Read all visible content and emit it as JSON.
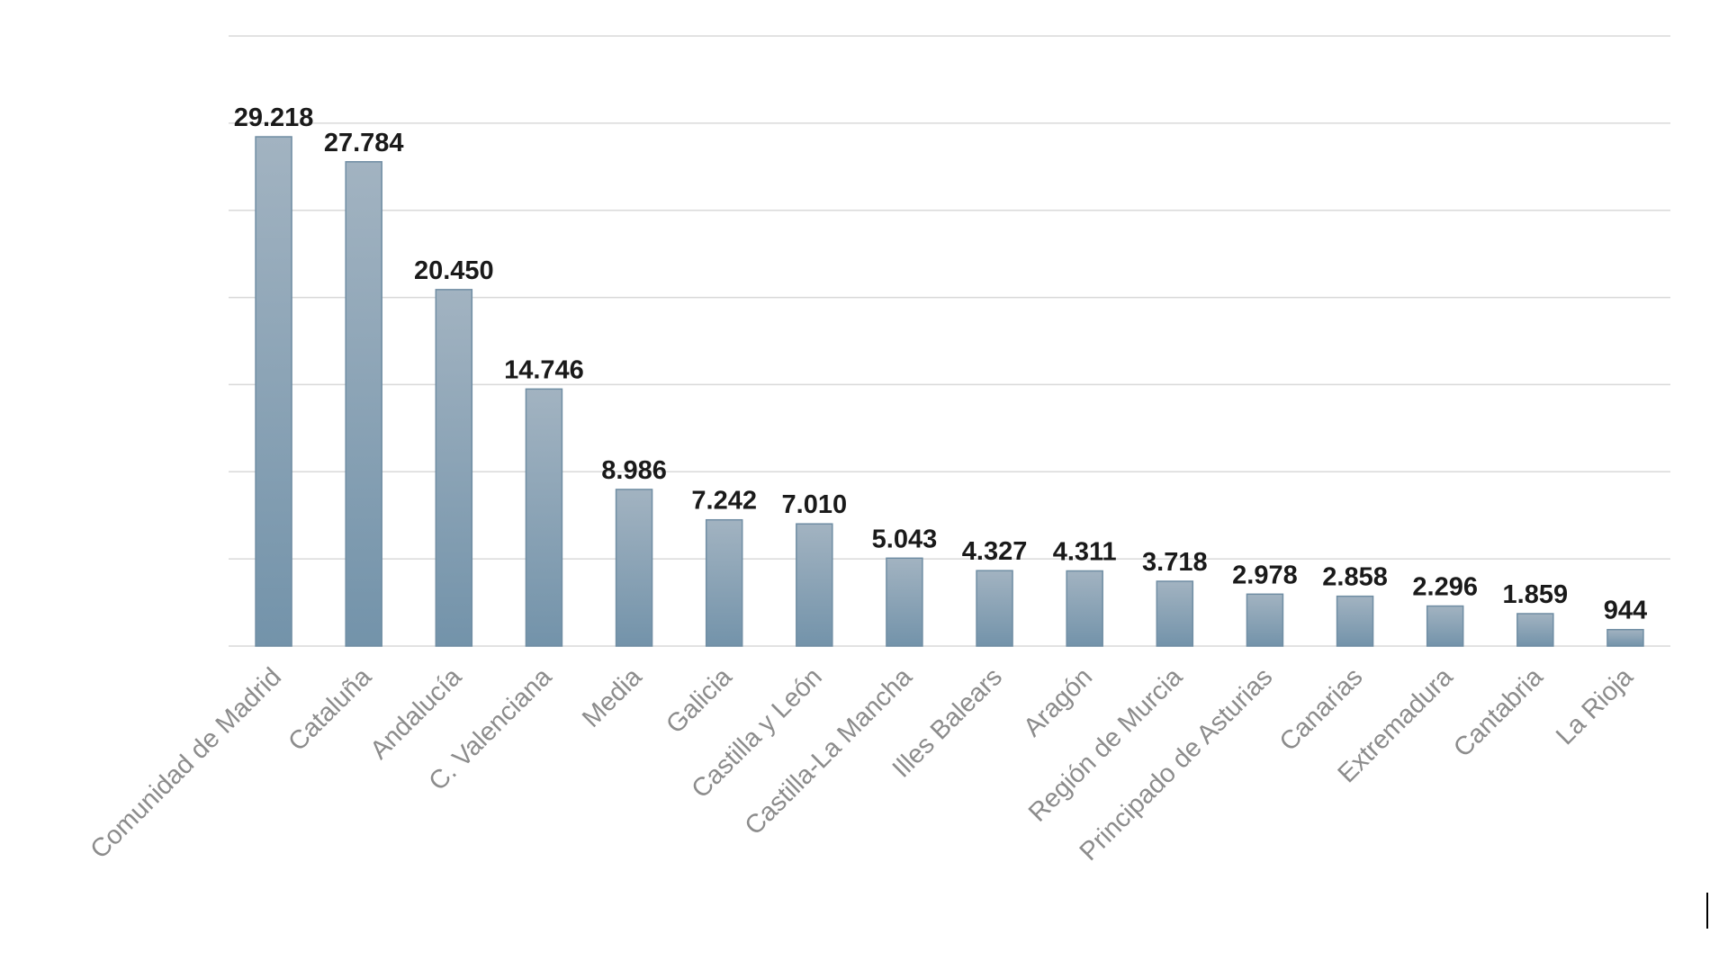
{
  "chart_data": {
    "type": "bar",
    "categories": [
      "Comunidad de Madrid",
      "Cataluña",
      "Andalucía",
      "C. Valenciana",
      "Media",
      "Galicia",
      "Castilla y León",
      "Castilla-La Mancha",
      "Illes Balears",
      "Aragón",
      "Región de Murcia",
      "Principado de Asturias",
      "Canarias",
      "Extremadura",
      "Cantabria",
      "La Rioja"
    ],
    "values": [
      29218,
      27784,
      20450,
      14746,
      8986,
      7242,
      7010,
      5043,
      4327,
      4311,
      3718,
      2978,
      2858,
      2296,
      1859,
      944
    ],
    "data_labels": [
      "29.218",
      "27.784",
      "20.450",
      "14.746",
      "8.986",
      "7.242",
      "7.010",
      "5.043",
      "4.327",
      "4.311",
      "3.718",
      "2.978",
      "2.858",
      "2.296",
      "1.859",
      "944"
    ],
    "title": "",
    "xlabel": "",
    "ylabel": "",
    "ylim": [
      0,
      35000
    ],
    "y_tick_step": 5000,
    "y_tick_labels_visible": false,
    "grid": true,
    "legend": "none",
    "colors": {
      "bar_top": "#a2b3c1",
      "bar_bottom": "#7393aa",
      "bar_border": "#6f8da3",
      "grid": "#d9d9d9",
      "data_label": "#1a1a1a",
      "tick_label": "#8c8c8c"
    }
  }
}
